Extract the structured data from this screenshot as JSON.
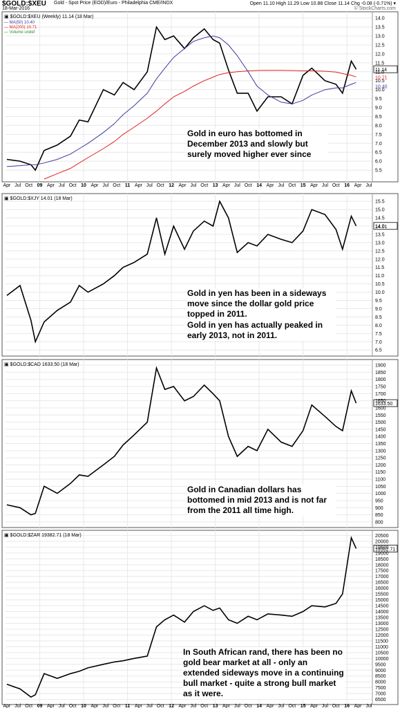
{
  "header": {
    "ticker": "$GOLD:$XEU",
    "description": "Gold - Spot Price (EOD)/Euro - Philadelphia CME/INDX",
    "ohlc": "Open 11.10  High 11.29  Low 10.88  Close 11.14  Chg -0.08 (-0.71%) ▾",
    "date": "18-Mar-2016",
    "copyright": "© StockCharts.com"
  },
  "colors": {
    "price": "#000000",
    "ma50": "#3b3b9e",
    "ma200": "#e02020",
    "grid": "#e8e8e8",
    "border": "#555555"
  },
  "x_axis_labels": [
    "Apr",
    "Jul",
    "Oct",
    "09",
    "Apr",
    "Jul",
    "Oct",
    "10",
    "Apr",
    "Jul",
    "Oct",
    "11",
    "Apr",
    "Jul",
    "Oct",
    "12",
    "Apr",
    "Jul",
    "Oct",
    "13",
    "Apr",
    "Jul",
    "Oct",
    "14",
    "Apr",
    "Jul",
    "Oct",
    "15",
    "Apr",
    "Jul",
    "Oct",
    "16",
    "Apr",
    "Jul"
  ],
  "chart_data": [
    {
      "type": "line",
      "legend_title": "$GOLD:$XEU (Weekly) 11.14 (18 Mar)",
      "legend": [
        {
          "text": "MA(50) 10.40",
          "color": "#3b3b9e"
        },
        {
          "text": "MA(200) 10.71",
          "color": "#e02020"
        },
        {
          "text": "Volume undef",
          "color": "#2a8a2a"
        }
      ],
      "ylim": [
        5.0,
        14.2
      ],
      "yticks": [
        "5.5",
        "6.0",
        "6.5",
        "7.0",
        "7.5",
        "8.0",
        "8.5",
        "9.0",
        "9.5",
        "10.0",
        "10.5",
        "11.0",
        "11.5",
        "12.0",
        "12.5",
        "13.0",
        "13.5",
        "14.0"
      ],
      "last_value": "11.14",
      "last_labels": [
        "10.71",
        "10.40"
      ],
      "x": [
        2008.25,
        2008.55,
        2008.8,
        2008.9,
        2009.1,
        2009.4,
        2009.7,
        2009.9,
        2010.1,
        2010.45,
        2010.7,
        2010.9,
        2011.15,
        2011.45,
        2011.66,
        2011.85,
        2012.05,
        2012.3,
        2012.5,
        2012.75,
        2012.95,
        2013.1,
        2013.3,
        2013.5,
        2013.75,
        2013.95,
        2014.2,
        2014.5,
        2014.75,
        2015.0,
        2015.2,
        2015.5,
        2015.75,
        2015.9,
        2016.1,
        2016.21
      ],
      "series": [
        {
          "values": [
            6.1,
            6.0,
            5.8,
            5.5,
            6.6,
            6.9,
            7.4,
            8.3,
            8.2,
            10.0,
            9.7,
            10.4,
            10.0,
            11.0,
            13.5,
            12.8,
            13.0,
            12.3,
            12.9,
            13.4,
            12.8,
            12.6,
            11.1,
            9.8,
            9.8,
            8.8,
            9.6,
            9.6,
            9.2,
            10.8,
            11.2,
            10.5,
            10.3,
            9.8,
            11.6,
            11.14
          ]
        },
        {
          "name": "MA(50)",
          "values": [
            5.7,
            5.75,
            5.8,
            5.8,
            5.9,
            6.1,
            6.4,
            6.7,
            7.0,
            7.6,
            8.1,
            8.6,
            9.1,
            9.8,
            10.6,
            11.2,
            11.8,
            12.3,
            12.7,
            12.9,
            13.0,
            12.9,
            12.5,
            11.9,
            11.0,
            10.2,
            9.7,
            9.3,
            9.2,
            9.4,
            9.7,
            10.0,
            10.1,
            10.1,
            10.3,
            10.4
          ]
        },
        {
          "name": "MA(200)",
          "values": [
            null,
            null,
            null,
            null,
            5.0,
            5.3,
            5.6,
            5.9,
            6.2,
            6.7,
            7.1,
            7.5,
            7.9,
            8.4,
            8.8,
            9.2,
            9.6,
            9.9,
            10.2,
            10.5,
            10.7,
            10.85,
            10.95,
            11.0,
            11.05,
            11.07,
            11.08,
            11.08,
            11.07,
            11.05,
            11.05,
            11.03,
            10.98,
            10.9,
            10.8,
            10.71
          ]
        }
      ]
    },
    {
      "type": "line",
      "legend_title": "$GOLD:$XJY 14.01 (18 Mar)",
      "ylim": [
        6.3,
        15.8
      ],
      "yticks": [
        "6.5",
        "7.0",
        "7.5",
        "8.0",
        "8.5",
        "9.0",
        "9.5",
        "10.0",
        "10.5",
        "11.0",
        "11.5",
        "12.0",
        "12.5",
        "13.0",
        "13.5",
        "14.0",
        "14.5",
        "15.0",
        "15.5"
      ],
      "last_value": "14.01",
      "x": [
        2008.25,
        2008.55,
        2008.8,
        2008.9,
        2009.1,
        2009.4,
        2009.7,
        2009.9,
        2010.1,
        2010.45,
        2010.7,
        2010.9,
        2011.15,
        2011.45,
        2011.66,
        2011.85,
        2012.05,
        2012.3,
        2012.5,
        2012.75,
        2012.95,
        2013.1,
        2013.3,
        2013.5,
        2013.75,
        2013.95,
        2014.2,
        2014.5,
        2014.75,
        2015.0,
        2015.2,
        2015.5,
        2015.75,
        2015.9,
        2016.1,
        2016.21
      ],
      "series": [
        {
          "values": [
            9.8,
            10.4,
            8.3,
            7.0,
            8.2,
            8.9,
            9.4,
            10.4,
            10.0,
            10.5,
            11.0,
            11.5,
            11.8,
            12.3,
            14.5,
            12.3,
            14.0,
            12.6,
            13.7,
            14.3,
            14.0,
            15.5,
            14.5,
            12.4,
            13.0,
            12.8,
            13.5,
            13.2,
            13.0,
            13.7,
            15.0,
            14.7,
            13.8,
            12.6,
            14.6,
            14.01
          ]
        }
      ]
    },
    {
      "type": "line",
      "legend_title": "$GOLD:$CAD 1633.50 (18 Mar)",
      "ylim": [
        780,
        1920
      ],
      "yticks": [
        "800",
        "850",
        "900",
        "950",
        "1000",
        "1050",
        "1100",
        "1150",
        "1200",
        "1250",
        "1300",
        "1350",
        "1400",
        "1450",
        "1500",
        "1550",
        "1600",
        "1650",
        "1700",
        "1750",
        "1800",
        "1850",
        "1900"
      ],
      "last_value": "1633.50",
      "x": [
        2008.25,
        2008.55,
        2008.8,
        2008.9,
        2009.1,
        2009.4,
        2009.7,
        2009.9,
        2010.1,
        2010.45,
        2010.7,
        2010.9,
        2011.15,
        2011.45,
        2011.66,
        2011.85,
        2012.05,
        2012.3,
        2012.5,
        2012.75,
        2012.95,
        2013.1,
        2013.3,
        2013.5,
        2013.75,
        2013.95,
        2014.2,
        2014.5,
        2014.75,
        2015.0,
        2015.2,
        2015.5,
        2015.75,
        2015.9,
        2016.1,
        2016.21
      ],
      "series": [
        {
          "values": [
            920,
            900,
            850,
            860,
            1050,
            1000,
            1070,
            1130,
            1120,
            1200,
            1260,
            1340,
            1410,
            1500,
            1880,
            1730,
            1750,
            1650,
            1680,
            1760,
            1700,
            1650,
            1400,
            1260,
            1330,
            1300,
            1450,
            1360,
            1330,
            1440,
            1620,
            1540,
            1470,
            1440,
            1720,
            1633.5
          ]
        }
      ]
    },
    {
      "type": "line",
      "legend_title": "$GOLD:$ZAR 19382.71 (18 Mar)",
      "ylim": [
        6300,
        20700
      ],
      "yticks": [
        "6500",
        "7000",
        "7500",
        "8000",
        "8500",
        "9000",
        "9500",
        "10000",
        "10500",
        "11000",
        "11500",
        "12000",
        "12500",
        "13000",
        "13500",
        "14000",
        "14500",
        "15000",
        "15500",
        "16000",
        "16500",
        "17000",
        "17500",
        "18000",
        "18500",
        "19000",
        "19500",
        "20000",
        "20500"
      ],
      "last_value": "19382.71",
      "x": [
        2008.25,
        2008.55,
        2008.8,
        2008.9,
        2009.1,
        2009.4,
        2009.7,
        2009.9,
        2010.1,
        2010.45,
        2010.7,
        2010.9,
        2011.15,
        2011.45,
        2011.66,
        2011.85,
        2012.05,
        2012.3,
        2012.5,
        2012.75,
        2012.95,
        2013.1,
        2013.3,
        2013.5,
        2013.75,
        2013.95,
        2014.2,
        2014.5,
        2014.75,
        2015.0,
        2015.2,
        2015.5,
        2015.75,
        2015.9,
        2016.1,
        2016.21
      ],
      "series": [
        {
          "values": [
            7800,
            7400,
            6700,
            6900,
            8700,
            8300,
            8700,
            8900,
            9200,
            9500,
            9700,
            9800,
            10000,
            10200,
            12700,
            13300,
            13700,
            13100,
            14000,
            14500,
            14100,
            14300,
            13300,
            13000,
            13600,
            13300,
            13800,
            13700,
            13600,
            14000,
            14500,
            14400,
            14700,
            15500,
            20300,
            19382.71
          ]
        }
      ]
    }
  ],
  "annotations": {
    "note1": "Gold in euro has bottomed in December 2013 and slowly but surely moved higher ever since",
    "note2": "Gold in yen has been in a sideways move since the dollar gold price topped in 2011.",
    "note3": "Gold in yen has actually peaked in early 2013, not in 2011.",
    "note4": "Gold in Canadian dollars has bottomed in mid 2013 and is not far from the 2011 all time high.",
    "note5": "In South African rand, there has been no gold bear market at all - only an extended sideways move in a continuing bull market - quite a strong bull market as it were."
  }
}
